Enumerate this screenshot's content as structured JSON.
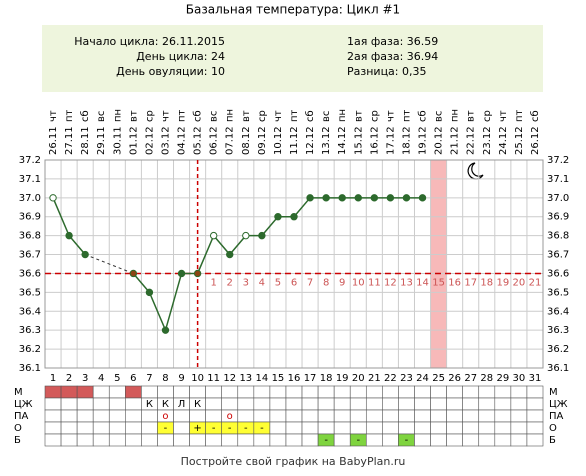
{
  "chart_data": {
    "type": "line",
    "title": "Базальная температура: Цикл #1",
    "info_left": [
      "Начало цикла: 26.11.2015",
      "День цикла: 24",
      "День овуляции: 10"
    ],
    "info_right": [
      "1ая фаза: 36.59",
      "2ая фаза: 36.94",
      "Разница: 0,35"
    ],
    "weekdays": [
      "чт",
      "пт",
      "сб",
      "вс",
      "пн",
      "вт",
      "ср",
      "чт",
      "пт",
      "сб",
      "вс",
      "пн",
      "вт",
      "ср",
      "чт",
      "пт",
      "сб",
      "вс",
      "пн",
      "вт",
      "ср",
      "чт",
      "пт",
      "сб",
      "вс",
      "пн",
      "вт",
      "ср",
      "чт",
      "пт",
      "сб"
    ],
    "categories": [
      "26.11",
      "27.11",
      "28.11",
      "29.11",
      "30.11",
      "01.12",
      "02.12",
      "03.12",
      "04.12",
      "05.12",
      "06.12",
      "07.12",
      "08.12",
      "09.12",
      "10.12",
      "11.12",
      "12.12",
      "13.12",
      "14.12",
      "15.12",
      "16.12",
      "17.12",
      "18.12",
      "19.12",
      "20.12",
      "21.12",
      "22.12",
      "23.12",
      "24.12",
      "25.12",
      "26.12"
    ],
    "day_numbers": [
      1,
      2,
      3,
      4,
      5,
      6,
      7,
      8,
      9,
      10,
      11,
      12,
      13,
      14,
      15,
      16,
      17,
      18,
      19,
      20,
      21,
      22,
      23,
      24,
      25,
      26,
      27,
      28,
      29,
      30,
      31
    ],
    "series": [
      {
        "color": "#2d6a2d",
        "values": [
          37.0,
          36.8,
          36.7,
          null,
          null,
          36.6,
          36.5,
          36.3,
          36.6,
          36.6,
          36.8,
          36.7,
          36.8,
          36.8,
          36.9,
          36.9,
          37.0,
          37.0,
          37.0,
          37.0,
          37.0,
          37.0,
          37.0,
          37.0,
          null,
          null,
          null,
          null,
          null,
          null,
          null
        ],
        "marker_fill": [
          "#ffffff",
          "#2d6a2d",
          "#2d6a2d",
          null,
          null,
          "#8b4513",
          "#2d6a2d",
          "#2d6a2d",
          "#2d6a2d",
          "#8b4513",
          "#ffffff",
          "#2d6a2d",
          "#ffffff",
          "#2d6a2d",
          "#2d6a2d",
          "#2d6a2d",
          "#2d6a2d",
          "#2d6a2d",
          "#2d6a2d",
          "#2d6a2d",
          "#2d6a2d",
          "#2d6a2d",
          "#2d6a2d",
          "#2d6a2d",
          null,
          null,
          null,
          null,
          null,
          null,
          null
        ]
      }
    ],
    "ylim": [
      36.1,
      37.2
    ],
    "yticks": [
      {
        "value": 37.2,
        "label": "37.2"
      },
      37.1,
      {
        "value": 37,
        "label": "37.0"
      },
      36.9,
      36.8,
      36.7,
      36.6,
      36.5,
      36.4,
      36.3,
      36.2,
      36.1
    ],
    "grid": true,
    "cover_line": 36.6,
    "cover_line_color": "#cc0000",
    "ovulation_day": 10,
    "post_ovulation_days": [
      1,
      2,
      3,
      4,
      5,
      6,
      7,
      8,
      9,
      10,
      11,
      12,
      13,
      14,
      15,
      16,
      17,
      18,
      19,
      20,
      21
    ],
    "highlight_day": 25,
    "highlight_color": "#f7b9b9",
    "table": [
      {
        "label": "М",
        "cells": [
          {
            "color": "#d35a5a"
          },
          {
            "color": "#d35a5a"
          },
          {
            "color": "#d35a5a"
          },
          null,
          null,
          {
            "color": "#d35a5a"
          },
          null,
          null,
          null,
          null,
          null,
          null,
          null,
          null,
          null,
          null,
          null,
          null,
          null,
          null,
          null,
          null,
          null,
          null,
          null,
          null,
          null,
          null,
          null,
          null,
          null
        ]
      },
      {
        "label": "ЦЖ",
        "cells": [
          null,
          null,
          null,
          null,
          null,
          null,
          {
            "text": "К"
          },
          {
            "text": "К"
          },
          {
            "text": "Л"
          },
          {
            "text": "К"
          },
          null,
          null,
          null,
          null,
          null,
          null,
          null,
          null,
          null,
          null,
          null,
          null,
          null,
          null,
          null,
          null,
          null,
          null,
          null,
          null,
          null
        ]
      },
      {
        "label": "ПА",
        "cells": [
          null,
          null,
          null,
          null,
          null,
          null,
          null,
          {
            "text": "о",
            "text_color": "#cc0000"
          },
          null,
          null,
          null,
          {
            "text": "о",
            "text_color": "#cc0000"
          },
          null,
          null,
          null,
          null,
          null,
          null,
          null,
          null,
          null,
          null,
          null,
          null,
          null,
          null,
          null,
          null,
          null,
          null,
          null
        ]
      },
      {
        "label": "О",
        "cells": [
          null,
          null,
          null,
          null,
          null,
          null,
          null,
          {
            "color": "#ffff33",
            "text": "-"
          },
          null,
          {
            "color": "#ffff33",
            "text": "+"
          },
          {
            "color": "#ffff33",
            "text": "-"
          },
          {
            "color": "#ffff33",
            "text": "-"
          },
          {
            "color": "#ffff33",
            "text": "-"
          },
          {
            "color": "#ffff33",
            "text": "-"
          },
          null,
          null,
          null,
          null,
          null,
          null,
          null,
          null,
          null,
          null,
          null,
          null,
          null,
          null,
          null,
          null,
          null
        ]
      },
      {
        "label": "Б",
        "cells": [
          null,
          null,
          null,
          null,
          null,
          null,
          null,
          null,
          null,
          null,
          null,
          null,
          null,
          null,
          null,
          null,
          null,
          {
            "color": "#7fd43f",
            "text": "-"
          },
          null,
          {
            "color": "#7fd43f",
            "text": "-"
          },
          null,
          null,
          {
            "color": "#7fd43f",
            "text": "-"
          },
          null,
          null,
          null,
          null,
          null,
          null,
          null,
          null
        ]
      }
    ],
    "footer": "Постройте свой график на BabyPlan.ru"
  }
}
